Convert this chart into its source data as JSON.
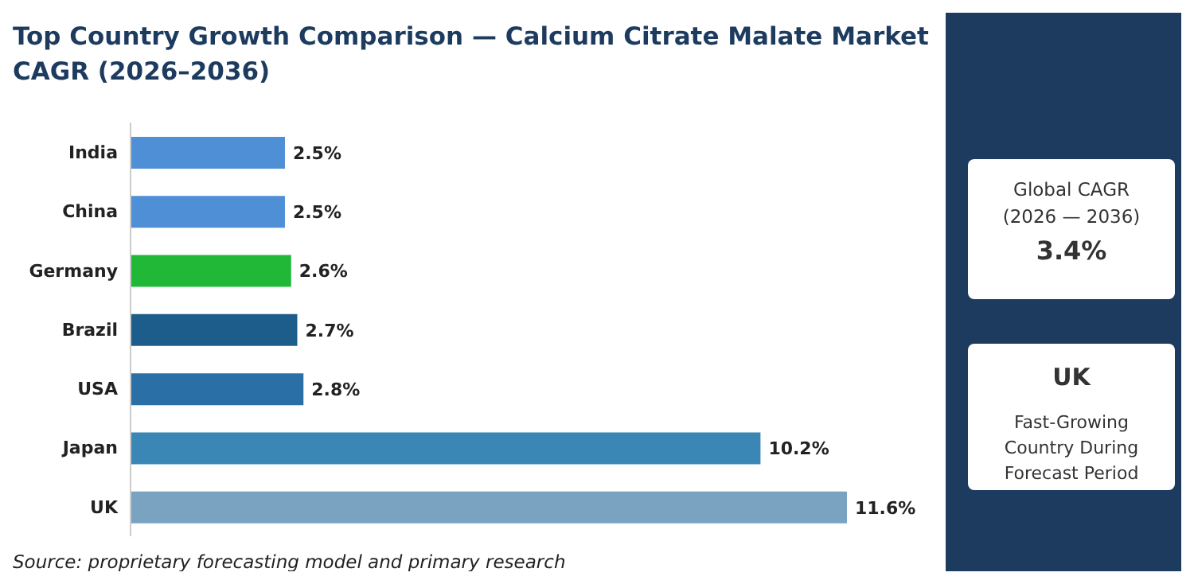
{
  "chart_data": {
    "type": "bar",
    "orientation": "horizontal",
    "title": "Top Country Growth Comparison — Calcium Citrate Malate Market CAGR (2026–2036)",
    "categories": [
      "India",
      "China",
      "Germany",
      "Brazil",
      "USA",
      "Japan",
      "UK"
    ],
    "values": [
      2.5,
      2.5,
      2.6,
      2.7,
      2.8,
      10.2,
      11.6
    ],
    "colors": [
      "#4f8fd6",
      "#4f8fd6",
      "#21b838",
      "#1d5d8c",
      "#2a70a6",
      "#3a86b4",
      "#7aa3c2"
    ],
    "value_labels": [
      "2.5%",
      "2.5%",
      "2.6%",
      "2.7%",
      "2.8%",
      "10.2%",
      "11.6%"
    ],
    "annotations": [
      "Source: proprietary forecasting model and primary research",
      "Global CAGR",
      "(2026 — 2036)",
      "3.4%",
      "UK",
      "Fast-Growing Country During Forecast Period"
    ]
  }
}
